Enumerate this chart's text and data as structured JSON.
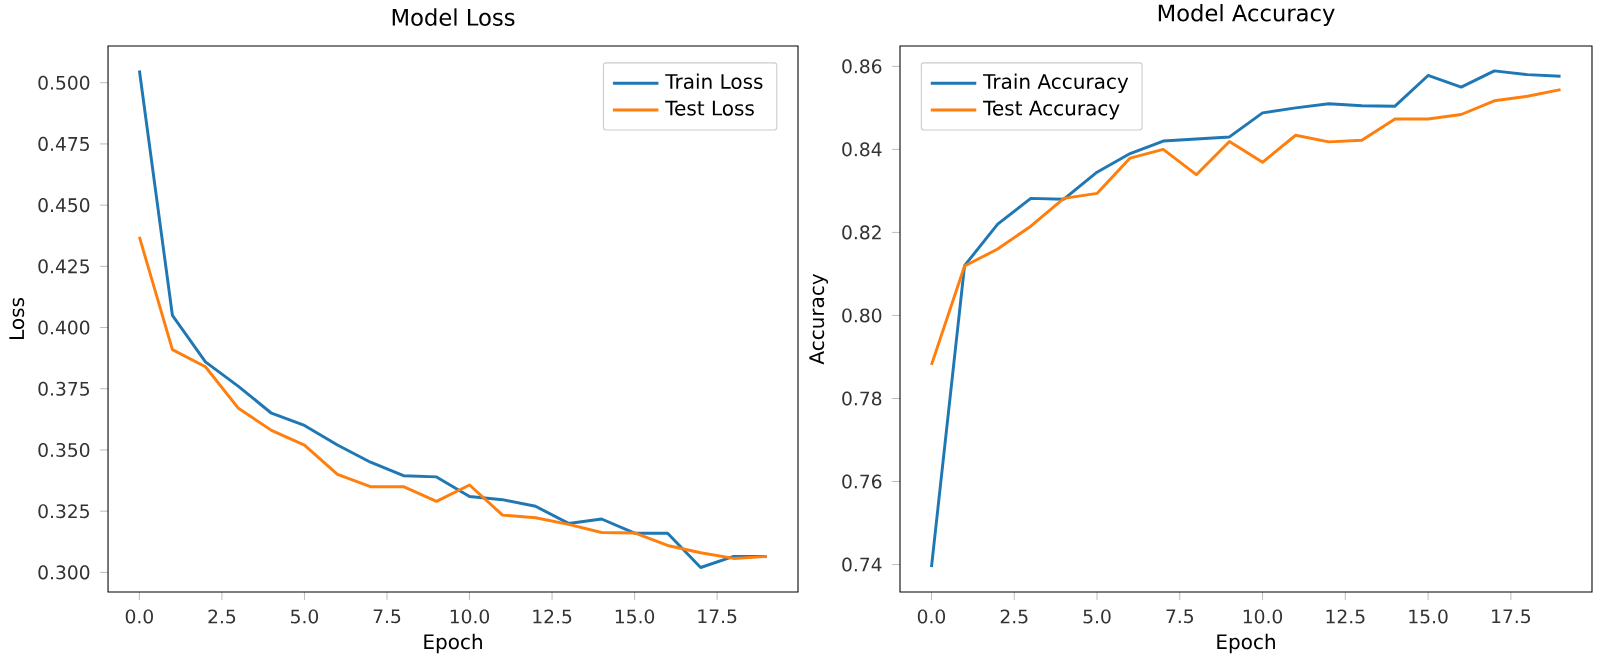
{
  "chart_data": [
    {
      "type": "line",
      "title": "Model Loss",
      "xlabel": "Epoch",
      "ylabel": "Loss",
      "legend": "top right",
      "x": [
        0,
        1,
        2,
        3,
        4,
        5,
        6,
        7,
        8,
        9,
        10,
        11,
        12,
        13,
        14,
        15,
        16,
        17,
        18,
        19
      ],
      "series": [
        {
          "name": "Train Loss",
          "color": "#1f77b4",
          "values": [
            0.505,
            0.405,
            0.386,
            0.376,
            0.365,
            0.36,
            0.352,
            0.345,
            0.3395,
            0.339,
            0.331,
            0.3297,
            0.327,
            0.32,
            0.3218,
            0.316,
            0.316,
            0.302,
            0.3065,
            0.3065
          ]
        },
        {
          "name": "Test Loss",
          "color": "#ff7f0e",
          "values": [
            0.437,
            0.391,
            0.384,
            0.367,
            0.358,
            0.352,
            0.34,
            0.335,
            0.335,
            0.329,
            0.3357,
            0.3234,
            0.3223,
            0.3196,
            0.3163,
            0.3161,
            0.311,
            0.308,
            0.3057,
            0.3065
          ]
        }
      ],
      "xlim": [
        -0.95,
        19.95
      ],
      "ylim": [
        0.292,
        0.515
      ],
      "xticks": [
        {
          "value": 0,
          "label": "0.0"
        },
        {
          "value": 2.5,
          "label": "2.5"
        },
        {
          "value": 5,
          "label": "5.0"
        },
        {
          "value": 7.5,
          "label": "7.5"
        },
        {
          "value": 10,
          "label": "10.0"
        },
        {
          "value": 12.5,
          "label": "12.5"
        },
        {
          "value": 15,
          "label": "15.0"
        },
        {
          "value": 17.5,
          "label": "17.5"
        }
      ],
      "yticks": [
        {
          "value": 0.3,
          "label": "0.300"
        },
        {
          "value": 0.325,
          "label": "0.325"
        },
        {
          "value": 0.35,
          "label": "0.350"
        },
        {
          "value": 0.375,
          "label": "0.375"
        },
        {
          "value": 0.4,
          "label": "0.400"
        },
        {
          "value": 0.425,
          "label": "0.425"
        },
        {
          "value": 0.45,
          "label": "0.450"
        },
        {
          "value": 0.475,
          "label": "0.475"
        },
        {
          "value": 0.5,
          "label": "0.500"
        }
      ]
    },
    {
      "type": "line",
      "title": "Model Accuracy",
      "xlabel": "Epoch",
      "ylabel": "Accuracy",
      "legend": "top left",
      "x": [
        0,
        1,
        2,
        3,
        4,
        5,
        6,
        7,
        8,
        9,
        10,
        11,
        12,
        13,
        14,
        15,
        16,
        17,
        18,
        19
      ],
      "series": [
        {
          "name": "Train Accuracy",
          "color": "#1f77b4",
          "values": [
            0.7394,
            0.812,
            0.822,
            0.8282,
            0.828,
            0.8345,
            0.839,
            0.842,
            0.8425,
            0.843,
            0.8488,
            0.85,
            0.851,
            0.8505,
            0.8504,
            0.8578,
            0.855,
            0.8589,
            0.858,
            0.8576
          ]
        },
        {
          "name": "Test Accuracy",
          "color": "#ff7f0e",
          "values": [
            0.7881,
            0.8119,
            0.816,
            0.8215,
            0.8282,
            0.8294,
            0.8379,
            0.84,
            0.8339,
            0.8419,
            0.8369,
            0.8434,
            0.8418,
            0.8422,
            0.8473,
            0.8473,
            0.8484,
            0.8517,
            0.8528,
            0.8544
          ]
        }
      ],
      "xlim": [
        -0.95,
        19.95
      ],
      "ylim": [
        0.7334,
        0.8649
      ],
      "xticks": [
        {
          "value": 0,
          "label": "0.0"
        },
        {
          "value": 2.5,
          "label": "2.5"
        },
        {
          "value": 5,
          "label": "5.0"
        },
        {
          "value": 7.5,
          "label": "7.5"
        },
        {
          "value": 10,
          "label": "10.0"
        },
        {
          "value": 12.5,
          "label": "12.5"
        },
        {
          "value": 15,
          "label": "15.0"
        },
        {
          "value": 17.5,
          "label": "17.5"
        }
      ],
      "yticks": [
        {
          "value": 0.74,
          "label": "0.74"
        },
        {
          "value": 0.76,
          "label": "0.76"
        },
        {
          "value": 0.78,
          "label": "0.78"
        },
        {
          "value": 0.8,
          "label": "0.80"
        },
        {
          "value": 0.82,
          "label": "0.82"
        },
        {
          "value": 0.84,
          "label": "0.84"
        },
        {
          "value": 0.86,
          "label": "0.86"
        }
      ]
    }
  ]
}
